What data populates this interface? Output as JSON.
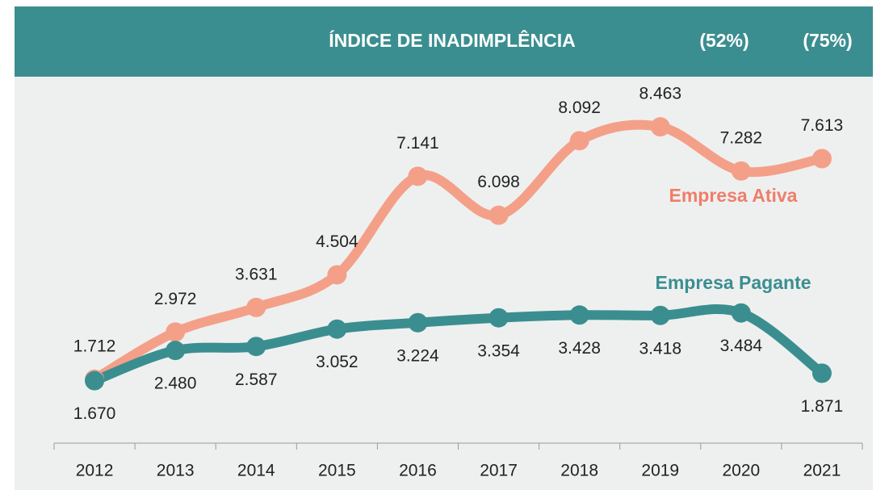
{
  "chart_data": {
    "type": "line",
    "title": "ÍNDICE DE INADIMPLÊNCIA",
    "annotations": [
      "(52%)",
      "(75%)"
    ],
    "categories": [
      "2012",
      "2013",
      "2014",
      "2015",
      "2016",
      "2017",
      "2018",
      "2019",
      "2020",
      "2021"
    ],
    "series": [
      {
        "name": "Empresa Ativa",
        "color": "#f4a088",
        "label_color": "#ef7e6a",
        "values": [
          1712,
          2972,
          3631,
          4504,
          7141,
          6098,
          8092,
          8463,
          7282,
          7613
        ],
        "value_labels": [
          "1.712",
          "2.972",
          "3.631",
          "4.504",
          "7.141",
          "6.098",
          "8.092",
          "8.463",
          "7.282",
          "7.613"
        ]
      },
      {
        "name": "Empresa Pagante",
        "color": "#3b8e90",
        "label_color": "#3b8e90",
        "values": [
          1670,
          2480,
          2587,
          3052,
          3224,
          3354,
          3428,
          3418,
          3484,
          1871
        ],
        "value_labels": [
          "1.670",
          "2.480",
          "2.587",
          "3.052",
          "3.224",
          "3.354",
          "3.428",
          "3.418",
          "3.484",
          "1.871"
        ]
      }
    ],
    "ylim": [
      0,
      10000
    ]
  }
}
